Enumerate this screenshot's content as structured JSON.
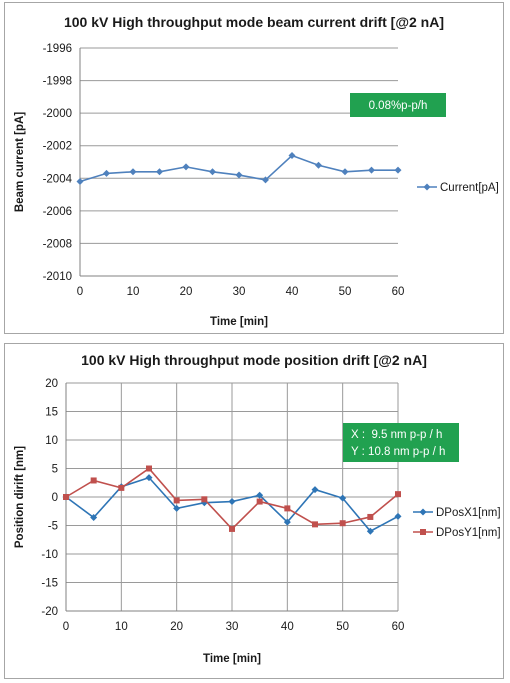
{
  "chart_data": [
    {
      "type": "line",
      "title": "100 kV High throughput mode beam current drift [@2 nA]",
      "xlabel": "Time [min]",
      "ylabel": "Beam current [pA]",
      "xlim": [
        0,
        60
      ],
      "ylim": [
        -2010,
        -1996
      ],
      "xticks": [
        0,
        10,
        20,
        30,
        40,
        50,
        60
      ],
      "yticks": [
        -1996,
        -1998,
        -2000,
        -2002,
        -2004,
        -2006,
        -2008,
        -2010
      ],
      "grid": "horizontal",
      "legend": "right",
      "annotation": "0.08%p-p/h",
      "annotation_color": "#21a150",
      "x": [
        0,
        5,
        10,
        15,
        20,
        25,
        30,
        35,
        40,
        45,
        50,
        55,
        60
      ],
      "series": [
        {
          "name": "Current[pA]",
          "color": "#4f81bd",
          "marker": "diamond",
          "values": [
            -2004.2,
            -2003.7,
            -2003.6,
            -2003.6,
            -2003.3,
            -2003.6,
            -2003.8,
            -2004.1,
            -2002.6,
            -2003.2,
            -2003.6,
            -2003.5,
            -2003.5
          ]
        }
      ]
    },
    {
      "type": "line",
      "title": "100 kV High throughput mode position drift [@2 nA]",
      "xlabel": "Time [min]",
      "ylabel": "Position dirift [nm]",
      "xlim": [
        0,
        60
      ],
      "ylim": [
        -20,
        20
      ],
      "xticks": [
        0,
        10,
        20,
        30,
        40,
        50,
        60
      ],
      "yticks": [
        20,
        15,
        10,
        5,
        0,
        -5,
        -10,
        -15,
        -20
      ],
      "grid": "both",
      "legend": "right",
      "annotation_lines": [
        "X :  9.5 nm p-p / h",
        "Y : 10.8 nm p-p / h"
      ],
      "annotation_color": "#21a150",
      "x": [
        0,
        5,
        10,
        15,
        20,
        25,
        30,
        35,
        40,
        45,
        50,
        55,
        60
      ],
      "series": [
        {
          "name": "DPosX1[nm]",
          "color": "#2e75b6",
          "marker": "diamond",
          "values": [
            0.0,
            -3.6,
            1.8,
            3.4,
            -2.0,
            -1.0,
            -0.8,
            0.3,
            -4.4,
            1.3,
            -0.2,
            -6.0,
            -3.4
          ]
        },
        {
          "name": "DPosY1[nm]",
          "color": "#c0504d",
          "marker": "square",
          "values": [
            0.0,
            2.9,
            1.6,
            5.0,
            -0.6,
            -0.4,
            -5.6,
            -0.8,
            -2.0,
            -4.8,
            -4.6,
            -3.5,
            0.5
          ]
        }
      ]
    }
  ]
}
